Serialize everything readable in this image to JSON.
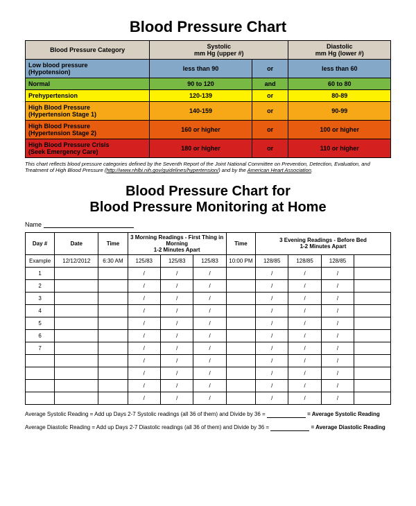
{
  "title1": "Blood Pressure Chart",
  "cat_table": {
    "header_bg": "#d7cfc1",
    "headers": {
      "category": "Blood Pressure Category",
      "systolic": "Systolic\nmm Hg (upper #)",
      "diastolic": "Diastolic\nmm Hg (lower #)"
    },
    "col_widths": [
      "34%",
      "28%",
      "10%",
      "28%"
    ],
    "rows": [
      {
        "bg": "#84a8c7",
        "name": "Low blood pressure\n(Hypotension)",
        "systolic": "less than 90",
        "conj": "or",
        "diastolic": "less than 60"
      },
      {
        "bg": "#77b943",
        "name": "Normal",
        "systolic": "90 to 120",
        "conj": "and",
        "diastolic": "60 to 80"
      },
      {
        "bg": "#fff200",
        "name": "Prehypertension",
        "systolic": "120-139",
        "conj": "or",
        "diastolic": "80-89"
      },
      {
        "bg": "#f7a816",
        "name": "High Blood Pressure\n(Hypertension Stage 1)",
        "systolic": "140-159",
        "conj": "or",
        "diastolic": "90-99"
      },
      {
        "bg": "#e85c0f",
        "name": "High Blood Pressure\n(Hypertension Stage 2)",
        "systolic": "160 or higher",
        "conj": "or",
        "diastolic": "100 or higher"
      },
      {
        "bg": "#d52020",
        "name": "High Blood Pressure Crisis\n(Seek Emergency Care)",
        "systolic": "180 or higher",
        "conj": "or",
        "diastolic": "110 or higher"
      }
    ]
  },
  "footnote": {
    "pre": "This chart reflects blood pressure categories defined by the Seventh Report of the Joint National Committee on Prevention, Detection, Evaluation, and Treatment of High Blood Pressure (",
    "link1": "http://www.nhlbi.nih.gov/guidelines/hypertension/",
    "mid": ") and by the ",
    "link2": "American Heart Association",
    "post": "."
  },
  "title2a": "Blood Pressure Chart for",
  "title2b": "Blood Pressure Monitoring at Home",
  "name_label": "Name",
  "log_table": {
    "headers": [
      "Day #",
      "Date",
      "Time",
      "3 Morning Readings - First Thing in Morning\n1-2 Minutes Apart",
      "Time",
      "3 Evening Readings - Before Bed\n1-2 Minutes Apart"
    ],
    "col_widths": [
      "8%",
      "12%",
      "8%",
      "9%",
      "9%",
      "9%",
      "8%",
      "9%",
      "9%",
      "9%",
      "10%"
    ],
    "example": {
      "day": "Example",
      "date": "12/12/2012",
      "time1": "6:30 AM",
      "m1": "125/83",
      "m2": "125/83",
      "m3": "125/83",
      "time2": "10:00 PM",
      "e1": "128/85",
      "e2": "128/85",
      "e3": "128/85"
    },
    "day_labels": [
      "1",
      "2",
      "3",
      "4",
      "5",
      "6",
      "7",
      "",
      "",
      "",
      ""
    ],
    "blank_reading": "/"
  },
  "avg_line1": {
    "pre": "Average Systolic Reading = Add up Days 2-7 Systolic readings (all 36 of them) and Divide by 36 = ",
    "post": " = Average Systolic Reading"
  },
  "avg_line2": {
    "pre": "Average Diastolic Reading = Add up Days 2-7 Diastolic readings (all 36 of them) and Divide by 36 = ",
    "post": " = Average Diastolic Reading"
  }
}
